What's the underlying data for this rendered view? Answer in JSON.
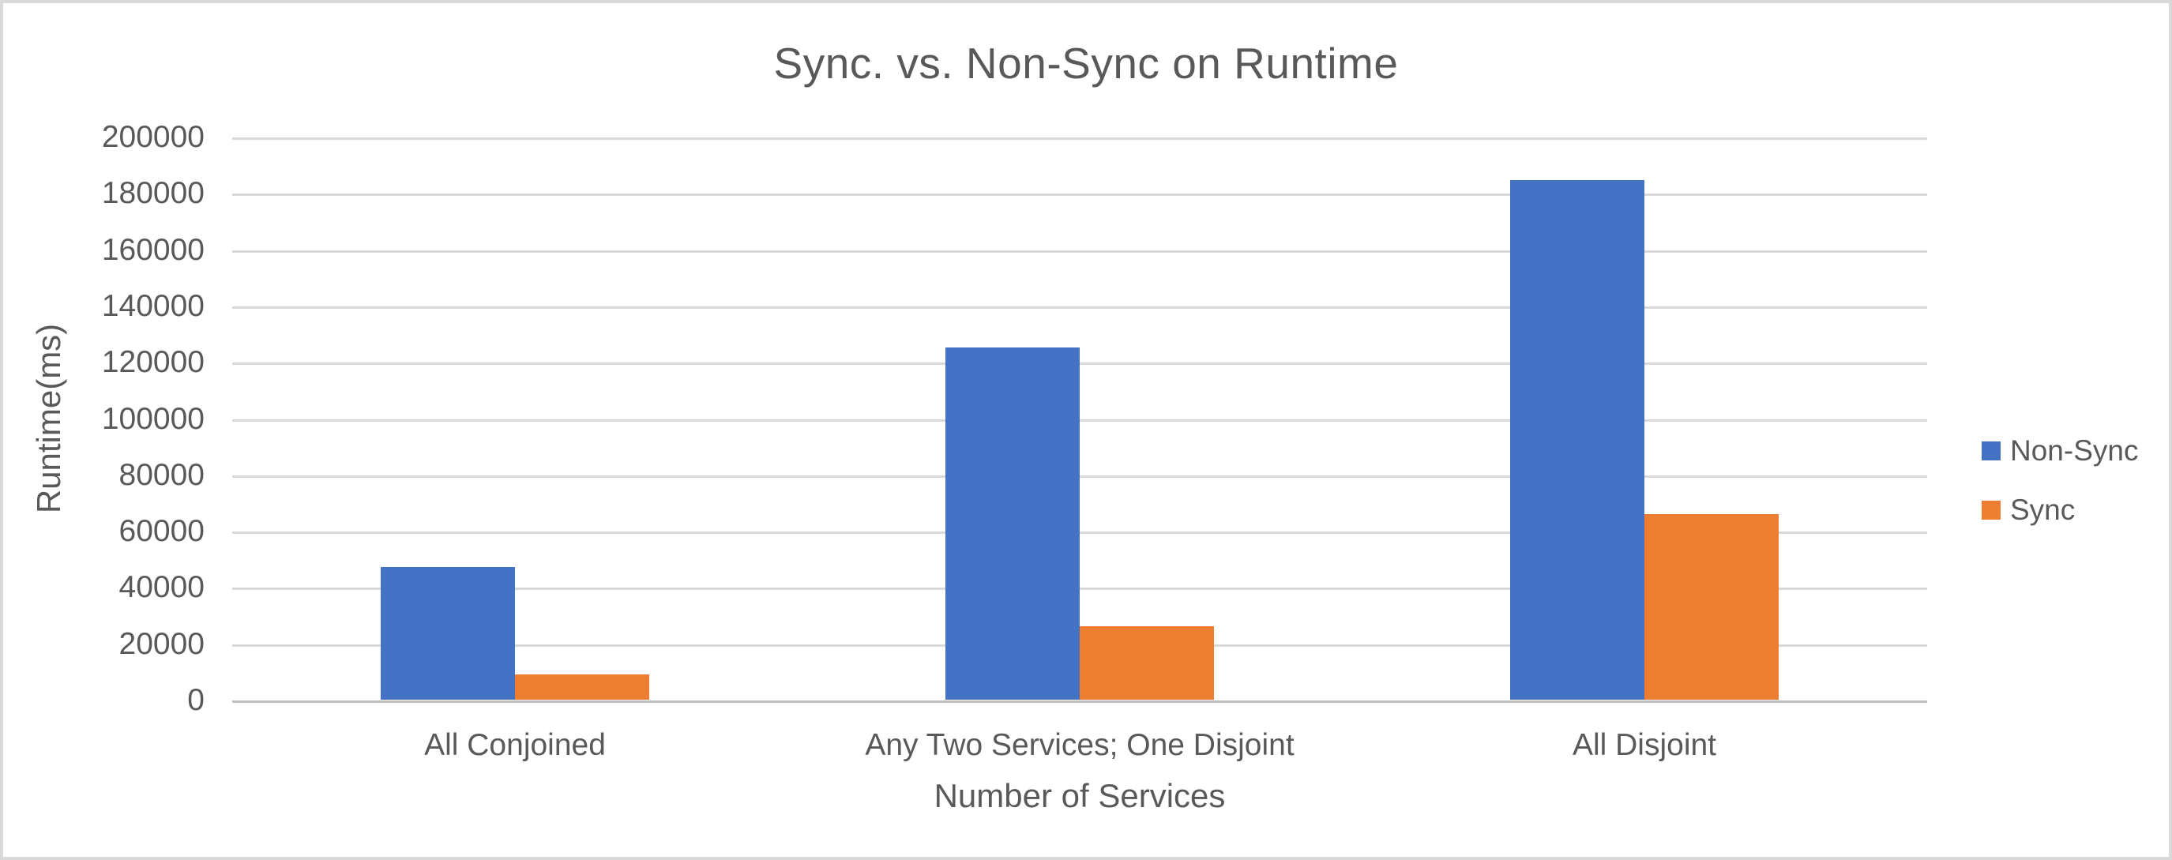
{
  "chart_data": {
    "type": "bar",
    "title": "Sync. vs. Non-Sync on Runtime",
    "xlabel": "Number of Services",
    "ylabel": "Runtime(ms)",
    "categories": [
      "All Conjoined",
      "Any Two Services; One Disjoint",
      "All Disjoint"
    ],
    "series": [
      {
        "name": "Non-Sync",
        "color": "#4472C4",
        "values": [
          47000,
          125000,
          184500
        ]
      },
      {
        "name": "Sync",
        "color": "#ED7D31",
        "values": [
          9000,
          26000,
          66000
        ]
      }
    ],
    "ylim": [
      0,
      200000
    ],
    "y_tick_step": 20000,
    "y_tick_labels_top_to_bottom": [
      "200000",
      "180000",
      "160000",
      "140000",
      "120000",
      "100000",
      "80000",
      "60000",
      "40000",
      "20000",
      "0"
    ],
    "grid": "horizontal",
    "legend_position": "right"
  },
  "colors": {
    "background": "#FFFFFF",
    "border": "#D9D9D9",
    "gridline": "#D9D9D9",
    "axis_line": "#BFBFBF",
    "text": "#595959"
  }
}
